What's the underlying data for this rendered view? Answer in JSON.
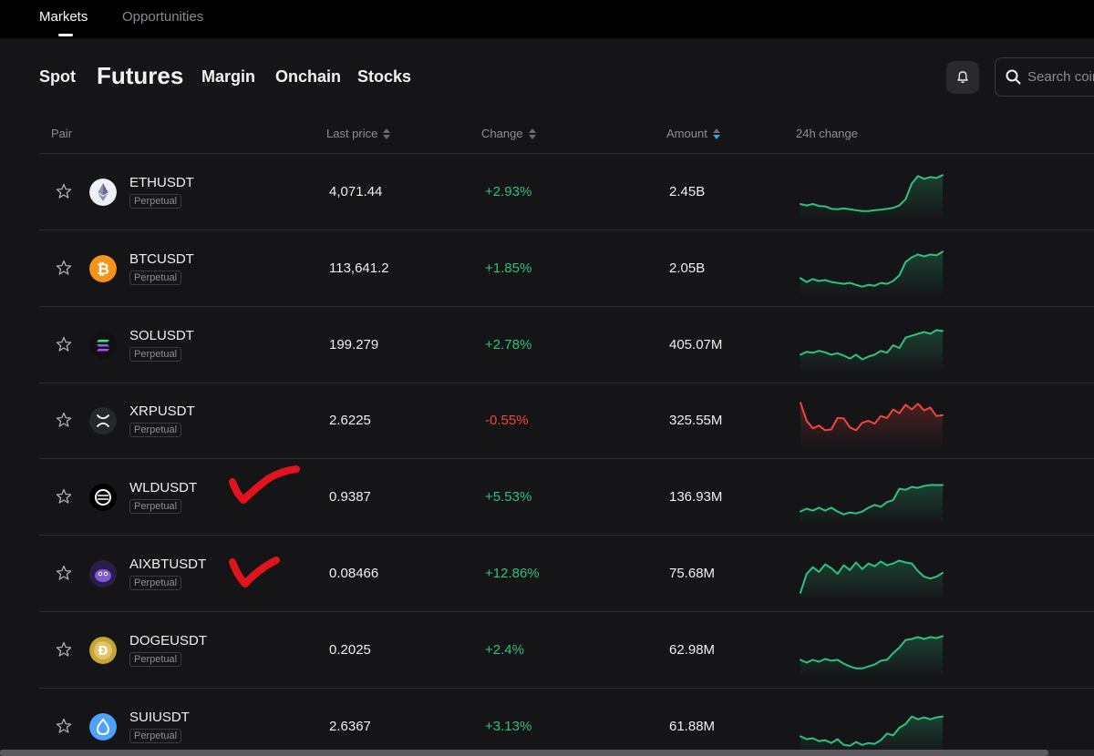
{
  "top_tabs": [
    {
      "label": "Markets",
      "active": true
    },
    {
      "label": "Opportunities",
      "active": false
    }
  ],
  "subnav": [
    "Spot",
    "Futures",
    "Margin",
    "Onchain",
    "Stocks"
  ],
  "subnav_active": "Futures",
  "search": {
    "placeholder": "Search coins"
  },
  "icons": {
    "bell": "bell-icon",
    "search": "search-icon",
    "star": "star-icon"
  },
  "columns": {
    "pair": "Pair",
    "last_price": "Last price",
    "change": "Change",
    "amount": "Amount",
    "trend": "24h change"
  },
  "colors": {
    "positive": "#2ec27e",
    "negative": "#f0453a",
    "sort_active": "#35a7d6",
    "annotation": "#e0141c"
  },
  "rows": [
    {
      "symbol": "ETHUSDT",
      "type": "Perpetual",
      "price": "4,071.44",
      "change": "+2.93%",
      "direction": "up",
      "amount": "2.45B",
      "coin_icon": "ethereum-icon",
      "spark": [
        0.25,
        0.22,
        0.25,
        0.21,
        0.2,
        0.15,
        0.14,
        0.16,
        0.14,
        0.12,
        0.1,
        0.1,
        0.12,
        0.13,
        0.15,
        0.17,
        0.22,
        0.35,
        0.68,
        0.84,
        0.78,
        0.82,
        0.8,
        0.86
      ]
    },
    {
      "symbol": "BTCUSDT",
      "type": "Perpetual",
      "price": "113,641.2",
      "change": "+1.85%",
      "direction": "up",
      "amount": "2.05B",
      "coin_icon": "bitcoin-icon",
      "spark": [
        0.3,
        0.22,
        0.28,
        0.24,
        0.26,
        0.22,
        0.2,
        0.18,
        0.2,
        0.16,
        0.12,
        0.16,
        0.14,
        0.2,
        0.18,
        0.24,
        0.36,
        0.64,
        0.74,
        0.8,
        0.76,
        0.8,
        0.78,
        0.86
      ]
    },
    {
      "symbol": "SOLUSDT",
      "type": "Perpetual",
      "price": "199.279",
      "change": "+2.78%",
      "direction": "up",
      "amount": "405.07M",
      "coin_icon": "solana-icon",
      "spark": [
        0.3,
        0.36,
        0.34,
        0.38,
        0.35,
        0.3,
        0.33,
        0.28,
        0.22,
        0.3,
        0.2,
        0.26,
        0.3,
        0.38,
        0.34,
        0.5,
        0.44,
        0.66,
        0.7,
        0.74,
        0.78,
        0.74,
        0.82,
        0.8
      ]
    },
    {
      "symbol": "XRPUSDT",
      "type": "Perpetual",
      "price": "2.6225",
      "change": "-0.55%",
      "direction": "down",
      "amount": "325.55M",
      "coin_icon": "xrp-icon",
      "spark": [
        0.88,
        0.5,
        0.34,
        0.4,
        0.3,
        0.32,
        0.56,
        0.55,
        0.36,
        0.3,
        0.46,
        0.5,
        0.44,
        0.6,
        0.56,
        0.74,
        0.66,
        0.84,
        0.74,
        0.86,
        0.72,
        0.78,
        0.6,
        0.62
      ]
    },
    {
      "symbol": "WLDUSDT",
      "type": "Perpetual",
      "price": "0.9387",
      "change": "+5.53%",
      "direction": "up",
      "amount": "136.93M",
      "coin_icon": "worldcoin-icon",
      "spark": [
        0.2,
        0.26,
        0.22,
        0.28,
        0.22,
        0.28,
        0.2,
        0.14,
        0.18,
        0.16,
        0.2,
        0.28,
        0.34,
        0.3,
        0.4,
        0.44,
        0.68,
        0.66,
        0.72,
        0.7,
        0.74,
        0.76,
        0.76,
        0.76
      ]
    },
    {
      "symbol": "AIXBTUSDT",
      "type": "Perpetual",
      "price": "0.08466",
      "change": "+12.86%",
      "direction": "up",
      "amount": "75.68M",
      "coin_icon": "aixbt-icon",
      "spark": [
        0.1,
        0.5,
        0.64,
        0.54,
        0.7,
        0.62,
        0.5,
        0.68,
        0.58,
        0.74,
        0.6,
        0.72,
        0.66,
        0.76,
        0.68,
        0.72,
        0.78,
        0.74,
        0.72,
        0.56,
        0.44,
        0.4,
        0.44,
        0.52
      ]
    },
    {
      "symbol": "DOGEUSDT",
      "type": "Perpetual",
      "price": "0.2025",
      "change": "+2.4%",
      "direction": "up",
      "amount": "62.98M",
      "coin_icon": "dogecoin-icon",
      "spark": [
        0.3,
        0.24,
        0.3,
        0.26,
        0.32,
        0.28,
        0.3,
        0.22,
        0.16,
        0.12,
        0.12,
        0.16,
        0.2,
        0.28,
        0.3,
        0.44,
        0.56,
        0.72,
        0.74,
        0.78,
        0.74,
        0.78,
        0.76,
        0.8
      ]
    },
    {
      "symbol": "SUIUSDT",
      "type": "Perpetual",
      "price": "2.6367",
      "change": "+3.13%",
      "direction": "up",
      "amount": "61.88M",
      "coin_icon": "sui-icon",
      "spark": [
        0.3,
        0.24,
        0.26,
        0.2,
        0.22,
        0.16,
        0.24,
        0.12,
        0.1,
        0.18,
        0.12,
        0.16,
        0.14,
        0.22,
        0.36,
        0.32,
        0.48,
        0.56,
        0.72,
        0.66,
        0.7,
        0.66,
        0.7,
        0.72
      ]
    }
  ]
}
